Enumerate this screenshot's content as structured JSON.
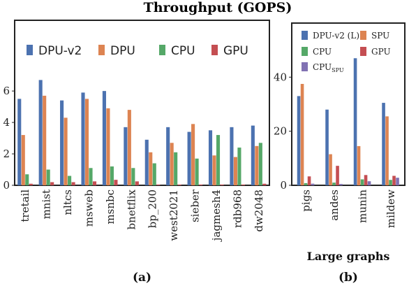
{
  "title": "Throughput (GOPS)",
  "colors": {
    "DPU-v2": "#4c72b0",
    "DPU-v2 (L)": "#4c72b0",
    "DPU": "#dd8452",
    "SPU": "#dd8452",
    "CPU": "#55a868",
    "GPU": "#c44e52",
    "CPU_SPU": "#8172b3"
  },
  "chart_data": [
    {
      "type": "bar",
      "panel_label": "(a)",
      "xlabel": "",
      "ylabel": "",
      "ylim": [
        0,
        10.5
      ],
      "yticks": [
        "0",
        "2",
        "4",
        "6"
      ],
      "ytick_values": [
        0,
        2,
        4,
        6
      ],
      "legend_placement": "top",
      "categories": [
        "tretail",
        "mnist",
        "nltcs",
        "msweb",
        "msnbc",
        "bnetflix",
        "bp_200",
        "west2021",
        "sieber",
        "jagmesh4",
        "rdb968",
        "dw2048"
      ],
      "series": [
        {
          "name": "DPU-v2",
          "values": [
            5.5,
            6.7,
            5.4,
            5.9,
            6.0,
            3.7,
            2.9,
            3.7,
            3.4,
            3.5,
            3.7,
            3.8
          ]
        },
        {
          "name": "DPU",
          "values": [
            3.2,
            5.7,
            4.3,
            5.5,
            4.9,
            4.8,
            2.1,
            2.7,
            3.9,
            1.9,
            1.8,
            2.5
          ]
        },
        {
          "name": "CPU",
          "values": [
            0.7,
            1.0,
            0.6,
            1.1,
            1.2,
            1.1,
            1.4,
            2.1,
            1.7,
            3.2,
            2.4,
            2.7
          ]
        },
        {
          "name": "GPU",
          "values": [
            0.1,
            0.2,
            0.2,
            0.25,
            0.35,
            0.25,
            0.05,
            0.05,
            0.05,
            0.05,
            0.05,
            0.1
          ]
        }
      ]
    },
    {
      "type": "bar",
      "panel_label": "(b)",
      "xlabel": "Large graphs",
      "ylabel": "",
      "ylim": [
        0,
        60
      ],
      "yticks": [
        "0",
        "20",
        "40"
      ],
      "ytick_values": [
        0,
        20,
        40
      ],
      "legend_placement": "top",
      "categories": [
        "pigs",
        "andes",
        "munin",
        "mildew"
      ],
      "series": [
        {
          "name": "DPU-v2 (L)",
          "values": [
            33,
            28,
            47,
            30.5
          ]
        },
        {
          "name": "SPU",
          "values": [
            37.5,
            11.5,
            14.5,
            25.5
          ]
        },
        {
          "name": "CPU",
          "values": [
            0.8,
            1.0,
            2.2,
            2.0
          ]
        },
        {
          "name": "GPU",
          "values": [
            3.3,
            7.2,
            3.8,
            3.5
          ]
        },
        {
          "name": "CPU",
          "sub": "SPU",
          "values": [
            0.6,
            0.5,
            1.5,
            2.8
          ]
        }
      ]
    }
  ]
}
